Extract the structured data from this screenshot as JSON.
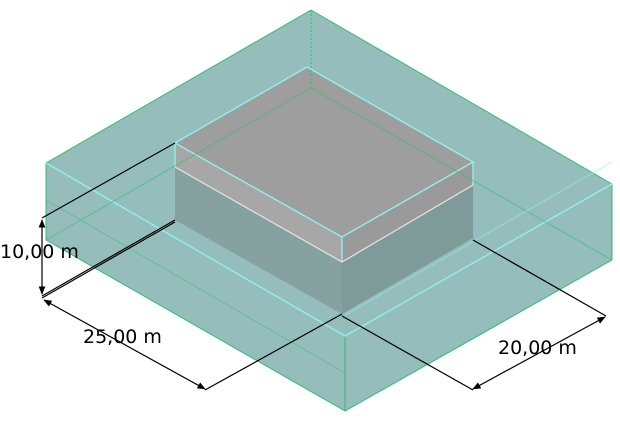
{
  "model": {
    "dimensions": {
      "height": "10,00 m",
      "length": "25,00 m",
      "width": "20,00 m"
    }
  },
  "colors": {
    "soil_volume": "#8fb9b7",
    "soil_volume_dark": "#7fa9a7",
    "building_top": "#9e9e9e",
    "building_band": "#a7a7a7",
    "building_side": "#808f8f",
    "edge_cyan": "#8ff0ee",
    "edge_green": "#2fbf6a",
    "dimension_line": "#000000"
  }
}
